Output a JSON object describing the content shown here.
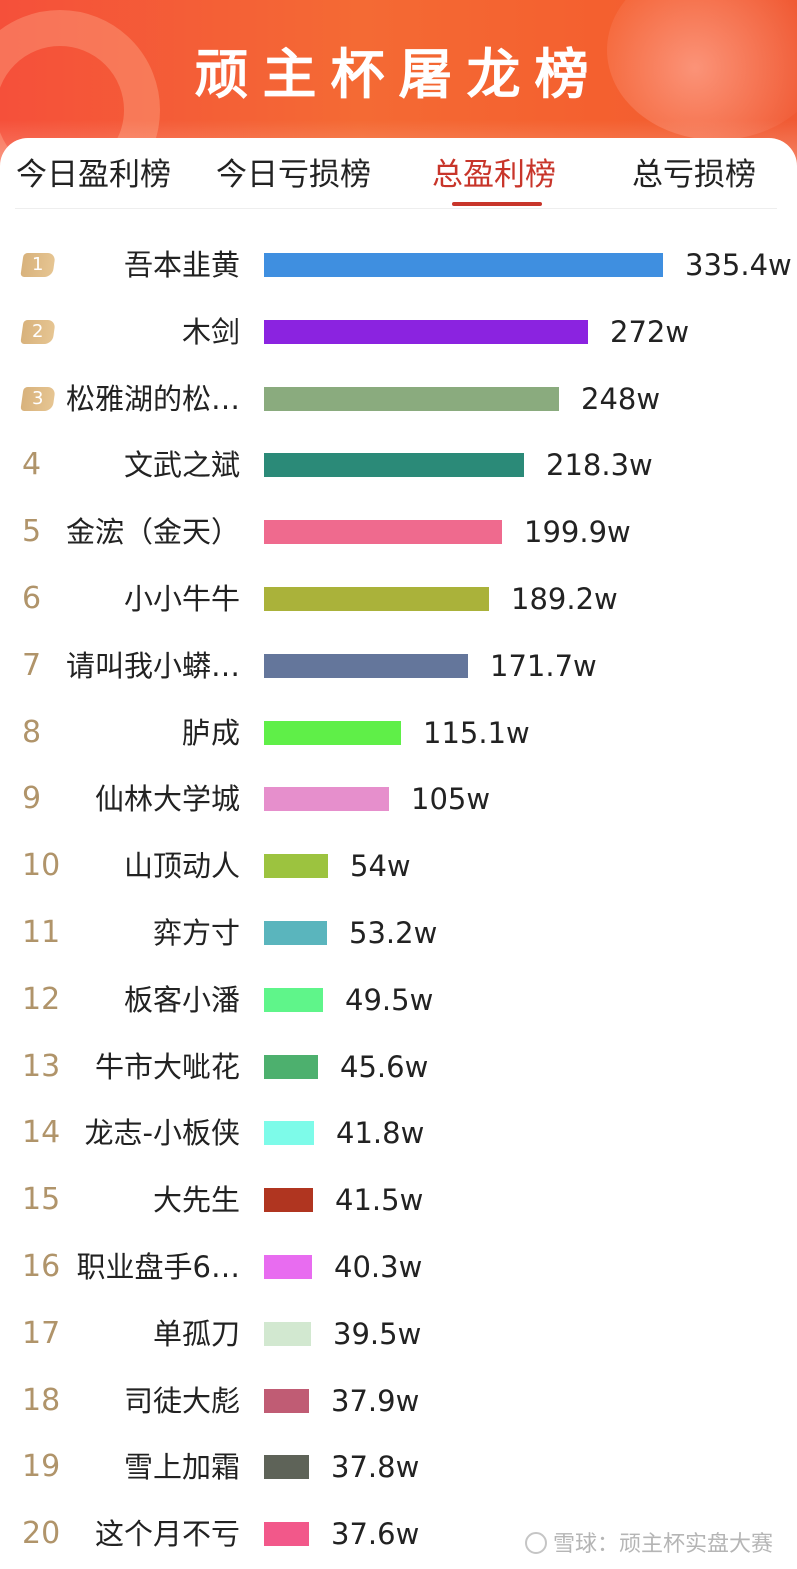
{
  "header": {
    "title": "顽主杯屠龙榜"
  },
  "tabs": [
    {
      "label": "今日盈利榜",
      "active": false
    },
    {
      "label": "今日亏损榜",
      "active": false
    },
    {
      "label": "总盈利榜",
      "active": true
    },
    {
      "label": "总亏损榜",
      "active": false
    }
  ],
  "colors": {
    "accent": "#c8352a",
    "header_bg": "#f4602f",
    "rank_gold": "#b0946a"
  },
  "chart_data": {
    "type": "bar",
    "orientation": "horizontal",
    "unit_suffix": "w",
    "categories": [
      "吾本韭黄",
      "木剑",
      "松雅湖的松…",
      "文武之斌",
      "金浤（金天）",
      "小小牛牛",
      "请叫我小蟒…",
      "胪成",
      "仙林大学城",
      "山顶动人",
      "弈方寸",
      "板客小潘",
      "牛市大呲花",
      "龙志-小板侠",
      "大先生",
      "职业盘手6…",
      "单孤刀",
      "司徒大彪",
      "雪上加霜",
      "这个月不亏"
    ],
    "values": [
      335.4,
      272,
      248,
      218.3,
      199.9,
      189.2,
      171.7,
      115.1,
      105,
      54,
      53.2,
      49.5,
      45.6,
      41.8,
      41.5,
      40.3,
      39.5,
      37.9,
      37.8,
      37.6
    ],
    "labels": [
      "335.4w",
      "272w",
      "248w",
      "218.3w",
      "199.9w",
      "189.2w",
      "171.7w",
      "115.1w",
      "105w",
      "54w",
      "53.2w",
      "49.5w",
      "45.6w",
      "41.8w",
      "41.5w",
      "40.3w",
      "39.5w",
      "37.9w",
      "37.8w",
      "37.6w"
    ],
    "ranks": [
      "1",
      "2",
      "3",
      "4",
      "5",
      "6",
      "7",
      "8",
      "9",
      "10",
      "11",
      "12",
      "13",
      "14",
      "15",
      "16",
      "17",
      "18",
      "19",
      "20"
    ],
    "colors": [
      "#3f8fe0",
      "#8b23e0",
      "#8aab7e",
      "#2b8a78",
      "#ef6a8e",
      "#aab23a",
      "#64769b",
      "#5fef48",
      "#e68fcc",
      "#9cc33f",
      "#5ab5bd",
      "#5ff58a",
      "#4db06e",
      "#7dfbe9",
      "#b03520",
      "#e86cf0",
      "#d2e8d0",
      "#c05c74",
      "#5e6358",
      "#f2588a"
    ],
    "xlim": [
      0,
      335.4
    ]
  },
  "watermark": {
    "text": "雪球：顽主杯实盘大赛"
  }
}
